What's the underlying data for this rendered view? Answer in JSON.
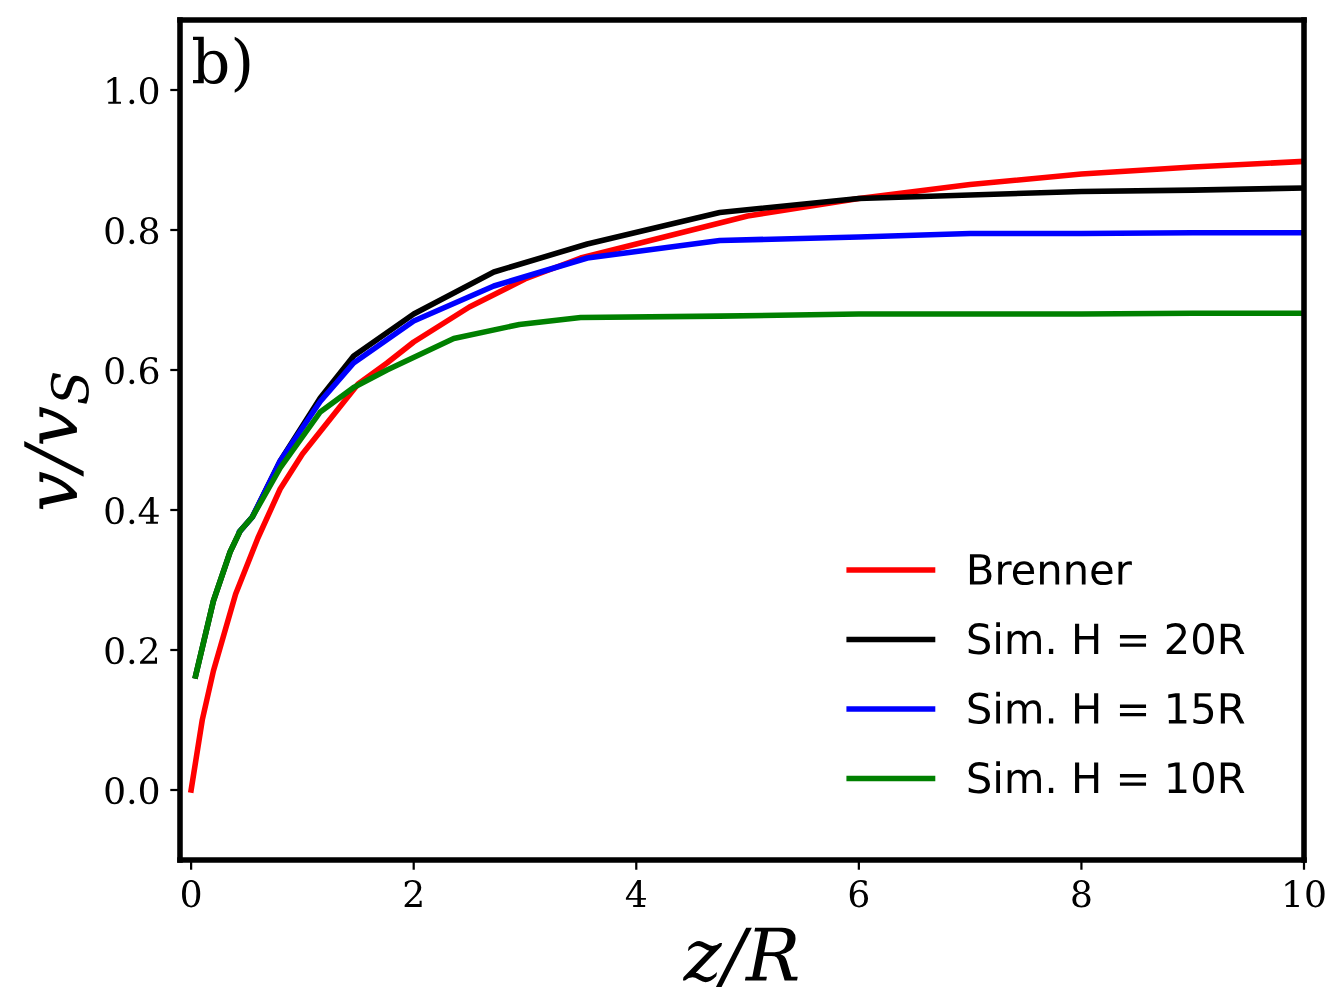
{
  "chart_data": {
    "type": "line",
    "xlabel": "z/R",
    "ylabel": "v/v$_{S}$",
    "annotations": [
      "b)"
    ],
    "xlim": [
      -0.1,
      10
    ],
    "ylim": [
      -0.1,
      1.1
    ],
    "xticks": [
      0,
      2,
      4,
      6,
      8,
      10
    ],
    "yticks": [
      {
        "value": 0,
        "label": "0.0"
      },
      {
        "value": 0.2,
        "label": "0.2"
      },
      {
        "value": 0.4,
        "label": "0.4"
      },
      {
        "value": 0.6,
        "label": "0.6"
      },
      {
        "value": 0.8,
        "label": "0.8"
      },
      {
        "value": 1.0,
        "label": "1.0"
      }
    ],
    "grid": false,
    "legend": "bottom right",
    "marker": "none",
    "line_style": "solid",
    "series": [
      {
        "name": "Brenner",
        "color": "#ff0000",
        "x": [
          0,
          0.1,
          0.2,
          0.4,
          0.6,
          0.8,
          1.0,
          1.25,
          1.5,
          1.76,
          2,
          2.5,
          3,
          3.5,
          4,
          5,
          6,
          7,
          8,
          9,
          10
        ],
        "values": [
          0,
          0.1,
          0.17,
          0.28,
          0.36,
          0.43,
          0.48,
          0.53,
          0.58,
          0.61,
          0.64,
          0.69,
          0.73,
          0.76,
          0.78,
          0.82,
          0.845,
          0.865,
          0.88,
          0.89,
          0.898
        ]
      },
      {
        "name": "Sim. H = 20R",
        "color": "#000000",
        "x": [
          0.04,
          0.2,
          0.35,
          0.44,
          0.55,
          0.8,
          1.16,
          1.46,
          2.0,
          2.72,
          3.56,
          4.75,
          6,
          7,
          8,
          9,
          10
        ],
        "values": [
          0.163,
          0.27,
          0.34,
          0.37,
          0.39,
          0.47,
          0.56,
          0.62,
          0.68,
          0.74,
          0.78,
          0.825,
          0.845,
          0.85,
          0.855,
          0.857,
          0.86
        ]
      },
      {
        "name": "Sim. H = 15R",
        "color": "#0000ff",
        "x": [
          0.44,
          0.55,
          0.8,
          1.16,
          1.46,
          2.0,
          2.72,
          3.56,
          4.75,
          6,
          7,
          8,
          9,
          10
        ],
        "values": [
          0.37,
          0.39,
          0.47,
          0.555,
          0.61,
          0.67,
          0.72,
          0.76,
          0.785,
          0.79,
          0.795,
          0.795,
          0.796,
          0.796
        ]
      },
      {
        "name": "Sim. H = 10R",
        "color": "#008000",
        "x": [
          0.04,
          0.2,
          0.35,
          0.44,
          0.55,
          0.8,
          1.16,
          1.46,
          1.76,
          2.36,
          2.95,
          3.5,
          4.75,
          6,
          7,
          8,
          9,
          10
        ],
        "values": [
          0.163,
          0.27,
          0.34,
          0.37,
          0.39,
          0.46,
          0.54,
          0.575,
          0.6,
          0.645,
          0.665,
          0.675,
          0.677,
          0.68,
          0.68,
          0.68,
          0.681,
          0.681
        ]
      }
    ]
  }
}
